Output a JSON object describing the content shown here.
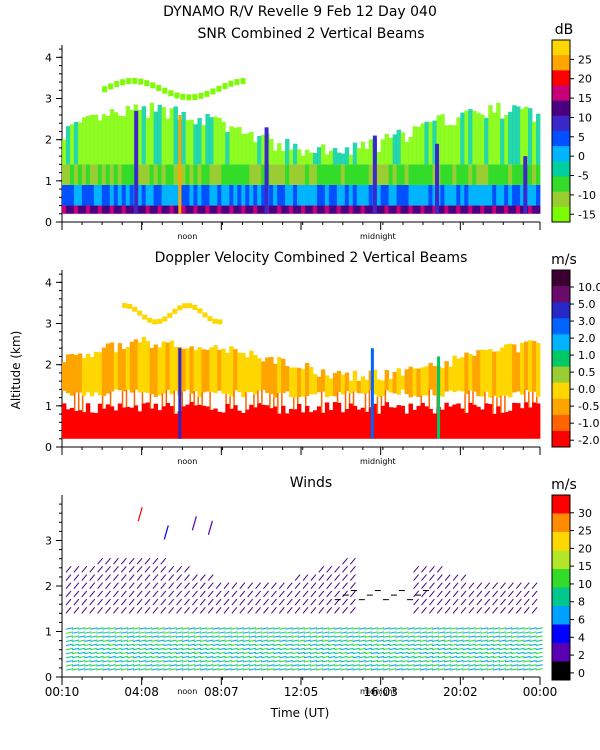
{
  "header": {
    "title_line1": "DYNAMO R/V Revelle    9 Feb 12 Day 040",
    "ylabel": "Altitude (km)",
    "xlabel": "Time (UT)"
  },
  "chart_data": [
    {
      "type": "heatmap",
      "title": "SNR Combined 2 Vertical Beams",
      "units": "dB",
      "ylim": [
        0,
        4.3
      ],
      "yticks": [
        0,
        1,
        2,
        3,
        4
      ],
      "markers": [
        {
          "label": "noon",
          "hour": 12
        },
        {
          "label": "midnight",
          "hour": 24
        }
      ],
      "colorbar": {
        "labels": [
          "25",
          "20",
          "15",
          "10",
          "5",
          "0",
          "-5",
          "-10",
          "-15"
        ],
        "colors": [
          "#ffd700",
          "#ffa500",
          "#ff0000",
          "#c80078",
          "#4b0082",
          "#3c28c8",
          "#0050ff",
          "#00b4ff",
          "#00d0a0",
          "#32dc28",
          "#9acd32",
          "#7cfc00"
        ]
      },
      "data_summary": {
        "echo_top_km": 2.5,
        "upper_layer_km": [
          3.0,
          3.5
        ],
        "surface_layer_km": [
          0.2,
          0.4
        ]
      }
    },
    {
      "type": "heatmap",
      "title": "Doppler Velocity Combined 2 Vertical Beams",
      "units": "m/s",
      "ylim": [
        0,
        4.3
      ],
      "yticks": [
        0,
        1,
        2,
        3,
        4
      ],
      "markers": [
        {
          "label": "noon",
          "hour": 12
        },
        {
          "label": "midnight",
          "hour": 24
        }
      ],
      "colorbar": {
        "labels": [
          "10.0",
          "5.0",
          "3.0",
          "2.0",
          "1.0",
          "0.5",
          "0.0",
          "-0.5",
          "-1.0",
          "-2.0"
        ],
        "colors": [
          "#3c0030",
          "#6a0a6a",
          "#2828c8",
          "#0064ff",
          "#00b4ff",
          "#00c864",
          "#9acd32",
          "#ffd700",
          "#ffa500",
          "#ff6400",
          "#ff0000"
        ]
      },
      "data_summary": {
        "red_layer_km": [
          0.2,
          1.0
        ],
        "orange_layer_km": [
          1.3,
          2.5
        ],
        "upper_layer_km": [
          3.0,
          3.5
        ]
      }
    },
    {
      "type": "barbs",
      "title": "Winds",
      "units": "m/s",
      "ylim": [
        0,
        4
      ],
      "yticks": [
        0,
        1,
        2,
        3
      ],
      "markers": [
        {
          "label": "noon",
          "hour": 12
        },
        {
          "label": "midnight",
          "hour": 24
        }
      ],
      "colorbar": {
        "labels": [
          "30",
          "25",
          "20",
          "15",
          "10",
          "8",
          "6",
          "4",
          "2",
          "0"
        ],
        "colors": [
          "#ff0000",
          "#ff8c00",
          "#ffd700",
          "#b4e628",
          "#32dc28",
          "#00c88c",
          "#00a0ff",
          "#0000ff",
          "#5a00b4",
          "#000000"
        ]
      },
      "x_tick_labels": [
        "00:10",
        "04:08",
        "08:07",
        "12:05",
        "16:03",
        "20:02",
        "00:00"
      ],
      "data_summary": {
        "low_level_km": [
          0.1,
          1.1
        ],
        "upper_band_km": [
          1.3,
          2.6
        ]
      }
    }
  ]
}
